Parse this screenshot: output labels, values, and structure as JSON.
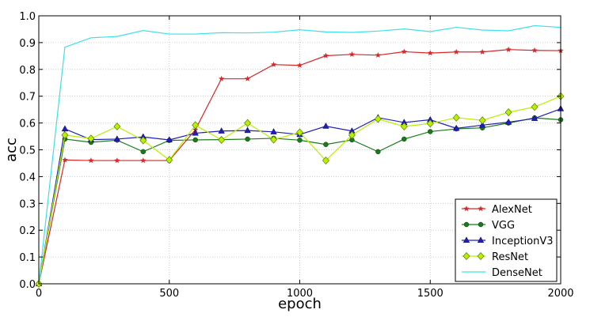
{
  "chart_data": {
    "type": "line",
    "title": "",
    "xlabel": "epoch",
    "ylabel": "acc",
    "xlim": [
      0,
      2000
    ],
    "ylim": [
      0.0,
      1.0
    ],
    "xticks": [
      0,
      500,
      1000,
      1500,
      2000
    ],
    "yticks": [
      0.0,
      0.1,
      0.2,
      0.3,
      0.4,
      0.5,
      0.6,
      0.7,
      0.8,
      0.9,
      1.0
    ],
    "grid": true,
    "legend_position": "lower-right",
    "x": [
      0,
      100,
      200,
      300,
      400,
      500,
      600,
      700,
      800,
      900,
      1000,
      1100,
      1200,
      1300,
      1400,
      1500,
      1600,
      1700,
      1800,
      1900,
      2000
    ],
    "series": [
      {
        "name": "AlexNet",
        "color": "#d62728",
        "marker": "star",
        "values": [
          0.0,
          0.462,
          0.46,
          0.46,
          0.46,
          0.46,
          0.575,
          0.765,
          0.765,
          0.818,
          0.815,
          0.851,
          0.856,
          0.853,
          0.866,
          0.861,
          0.865,
          0.865,
          0.874,
          0.871,
          0.87
        ]
      },
      {
        "name": "VGG",
        "color": "#1a7a1a",
        "marker": "circle",
        "values": [
          0.0,
          0.54,
          0.528,
          0.536,
          0.493,
          0.535,
          0.537,
          0.538,
          0.54,
          0.543,
          0.536,
          0.52,
          0.537,
          0.493,
          0.54,
          0.568,
          0.578,
          0.582,
          0.6,
          0.619,
          0.612
        ]
      },
      {
        "name": "InceptionV3",
        "color": "#1f1fb4",
        "marker": "triangle",
        "values": [
          0.0,
          0.578,
          0.538,
          0.54,
          0.548,
          0.537,
          0.562,
          0.57,
          0.572,
          0.567,
          0.557,
          0.588,
          0.57,
          0.62,
          0.602,
          0.612,
          0.58,
          0.592,
          0.603,
          0.617,
          0.653
        ]
      },
      {
        "name": "ResNet",
        "color": "#b7f000",
        "marker": "diamond",
        "values": [
          0.0,
          0.555,
          0.542,
          0.587,
          0.535,
          0.462,
          0.592,
          0.537,
          0.6,
          0.538,
          0.565,
          0.46,
          0.555,
          0.615,
          0.587,
          0.598,
          0.62,
          0.61,
          0.64,
          0.66,
          0.7
        ]
      },
      {
        "name": "DenseNet",
        "color": "#3de0e8",
        "marker": "none",
        "values": [
          0.0,
          0.883,
          0.918,
          0.923,
          0.945,
          0.932,
          0.932,
          0.937,
          0.936,
          0.939,
          0.948,
          0.94,
          0.938,
          0.943,
          0.951,
          0.941,
          0.957,
          0.947,
          0.944,
          0.963,
          0.957
        ]
      }
    ]
  }
}
